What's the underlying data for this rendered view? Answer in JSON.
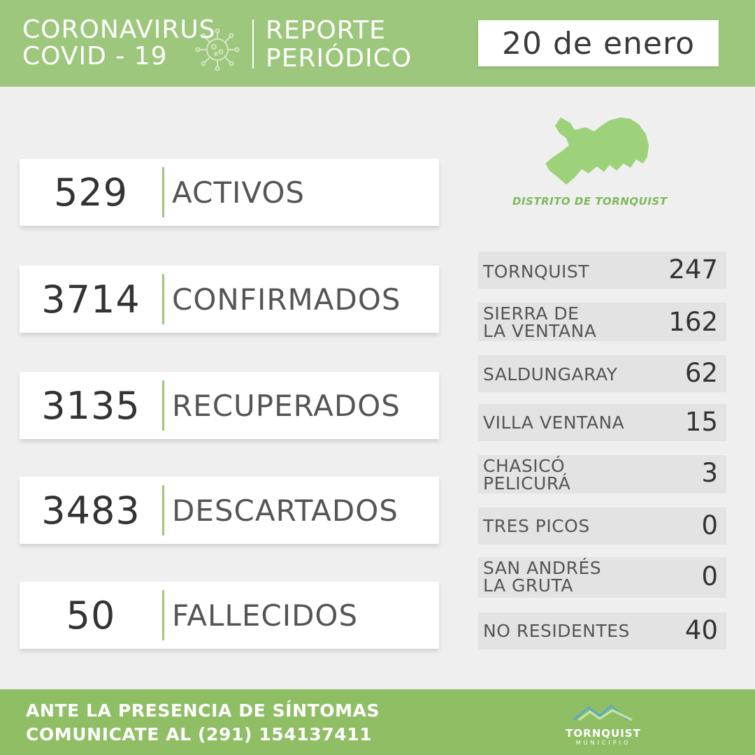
{
  "header": {
    "title_line1": "CORONAVIRUS",
    "title_line2": "COVID - 19",
    "report_line1": "REPORTE",
    "report_line2": "PERIÓDICO",
    "date": "20 de enero",
    "icon": "virus-icon"
  },
  "stats": [
    {
      "value": "529",
      "label": "ACTIVOS"
    },
    {
      "value": "3714",
      "label": "CONFIRMADOS"
    },
    {
      "value": "3135",
      "label": "RECUPERADOS"
    },
    {
      "value": "3483",
      "label": "DESCARTADOS"
    },
    {
      "value": "50",
      "label": "FALLECIDOS"
    }
  ],
  "map": {
    "caption": "DISTRITO DE TORNQUIST",
    "color": "#9dd27a"
  },
  "localities": [
    {
      "line1": "TORNQUIST",
      "line2": "",
      "value": "247"
    },
    {
      "line1": "SIERRA DE",
      "line2": "LA VENTANA",
      "value": "162"
    },
    {
      "line1": "SALDUNGARAY",
      "line2": "",
      "value": "62"
    },
    {
      "line1": "VILLA VENTANA",
      "line2": "",
      "value": "15"
    },
    {
      "line1": "CHASICÓ",
      "line2": "PELICURÁ",
      "value": "3"
    },
    {
      "line1": "TRES PICOS",
      "line2": "",
      "value": "0"
    },
    {
      "line1": "SAN ANDRÉS",
      "line2": "LA GRUTA",
      "value": "0"
    },
    {
      "line1": "NO RESIDENTES",
      "line2": "",
      "value": "40"
    }
  ],
  "footer": {
    "line1": "ANTE LA PRESENCIA DE SÍNTOMAS",
    "line2": "COMUNICATE AL (291) 154137411",
    "logo_name": "TORNQUIST",
    "logo_sub": "MUNICIPIO"
  },
  "colors": {
    "green_header": "#9dc77c",
    "green_footer": "#8fbe65",
    "background": "#efefef"
  }
}
